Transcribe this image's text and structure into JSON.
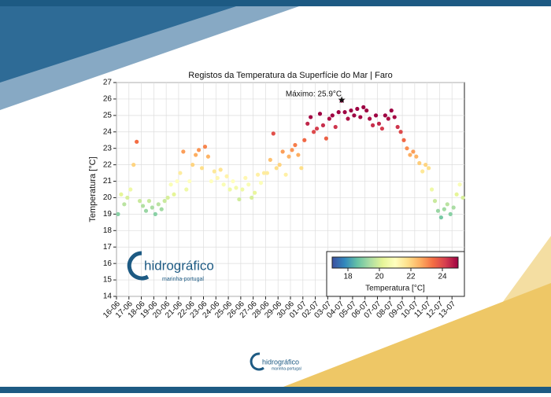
{
  "chart_data": {
    "type": "scatter",
    "title": "Registos da Temperatura da Superfície do Mar | Faro",
    "y_label": "Temperatura [°C]",
    "categories": [
      "16-06",
      "17-06",
      "18-06",
      "19-06",
      "20-06",
      "21-06",
      "22-06",
      "23-06",
      "24-06",
      "25-06",
      "26-06",
      "27-06",
      "28-06",
      "29-06",
      "30-06",
      "01-07",
      "02-07",
      "03-07",
      "04-07",
      "05-07",
      "06-07",
      "07-07",
      "08-07",
      "09-07",
      "10-07",
      "11-07",
      "12-07",
      "13-07"
    ],
    "values": [
      [
        19.0,
        20.2,
        19.6,
        20.0
      ],
      [
        20.5,
        22.0,
        23.4,
        19.8
      ],
      [
        19.5,
        19.2,
        19.8,
        19.4
      ],
      [
        19.0,
        19.6,
        19.3,
        19.8
      ],
      [
        20.0,
        20.8,
        20.2,
        21.0
      ],
      [
        21.5,
        22.8,
        20.5,
        21.0
      ],
      [
        22.0,
        22.6,
        22.9,
        21.8
      ],
      [
        23.1,
        22.5,
        21.0,
        21.6
      ],
      [
        21.2,
        21.7,
        20.8,
        21.3
      ],
      [
        20.5,
        21.0,
        20.6,
        19.9
      ],
      [
        20.5,
        21.2,
        20.8,
        20.0
      ],
      [
        20.3,
        21.4,
        20.9,
        21.5
      ],
      [
        21.5,
        22.3,
        23.9,
        21.8
      ],
      [
        22.0,
        22.8,
        21.4,
        22.5
      ],
      [
        22.9,
        23.2,
        22.6,
        21.8
      ],
      [
        23.5,
        24.5,
        24.9,
        24.0
      ],
      [
        24.2,
        25.1,
        24.4,
        23.6
      ],
      [
        24.8,
        25.0,
        24.3,
        25.2
      ],
      [
        25.9,
        25.2,
        24.8,
        25.3
      ],
      [
        25.0,
        25.4,
        24.9,
        25.5
      ],
      [
        25.3,
        24.8,
        24.4,
        25.0
      ],
      [
        24.5,
        24.2,
        25.0,
        24.8
      ],
      [
        25.3,
        24.9,
        24.3,
        24.0
      ],
      [
        23.5,
        23.0,
        22.6,
        22.8
      ],
      [
        22.5,
        22.1,
        21.6,
        22.0
      ],
      [
        21.8,
        20.5,
        19.8,
        19.2
      ],
      [
        18.8,
        19.3,
        19.6,
        19.0
      ],
      [
        19.4,
        20.2,
        20.8,
        20.0
      ]
    ],
    "ylim": [
      14,
      27
    ],
    "yticks": [
      14,
      15,
      16,
      17,
      18,
      19,
      20,
      21,
      22,
      23,
      24,
      25,
      26,
      27
    ],
    "grid": true,
    "annotation": "Máximo: 25.9°C",
    "colormap": [
      "#3b4fa0",
      "#3288bd",
      "#66c2a5",
      "#abdda4",
      "#e6f598",
      "#ffffbf",
      "#fee08b",
      "#fdae61",
      "#f46d43",
      "#d53e4f",
      "#9e0142"
    ],
    "colorbar": {
      "label": "Temperatura [°C]",
      "lim": [
        17,
        25
      ],
      "ticks": [
        18,
        20,
        22,
        24
      ]
    },
    "logo": {
      "name": "hidrográfico",
      "subtitle": "marinha-portugal"
    },
    "footer_logo": {
      "name": "hidrográfico",
      "subtitle": "marinha-portugal"
    }
  }
}
